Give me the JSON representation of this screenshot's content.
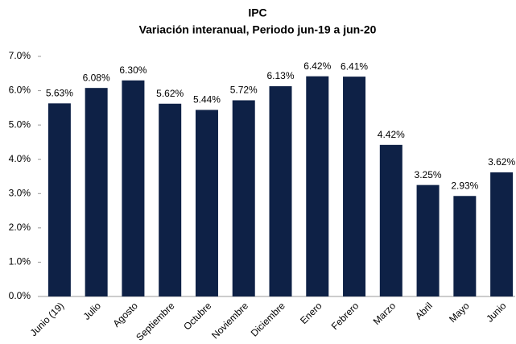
{
  "chart_data": {
    "type": "bar",
    "title": "IPC",
    "subtitle": "Variación interanual, Periodo jun-19 a jun-20",
    "categories": [
      "Junio (19)",
      "Julio",
      "Agosto",
      "Septiembre",
      "Octubre",
      "Noviembre",
      "Diciembre",
      "Enero",
      "Febrero",
      "Marzo",
      "Abril",
      "Mayo",
      "Junio"
    ],
    "values": [
      5.63,
      6.08,
      6.3,
      5.62,
      5.44,
      5.72,
      6.13,
      6.42,
      6.41,
      4.42,
      3.25,
      2.93,
      3.62
    ],
    "value_labels": [
      "5.63%",
      "6.08%",
      "6.30%",
      "5.62%",
      "5.44%",
      "5.72%",
      "6.13%",
      "6.42%",
      "6.41%",
      "4.42%",
      "3.25%",
      "2.93%",
      "3.62%"
    ],
    "color": "#0e2146",
    "ylim": [
      0,
      7
    ],
    "yticks": [
      {
        "value": 0,
        "label": "0.0%"
      },
      {
        "value": 1,
        "label": "1.0%"
      },
      {
        "value": 2,
        "label": "2.0%"
      },
      {
        "value": 3,
        "label": "3.0%"
      },
      {
        "value": 4,
        "label": "4.0%"
      },
      {
        "value": 5,
        "label": "5.0%"
      },
      {
        "value": 6,
        "label": "6.0%"
      },
      {
        "value": 7,
        "label": "7.0%"
      }
    ],
    "grid": false
  }
}
